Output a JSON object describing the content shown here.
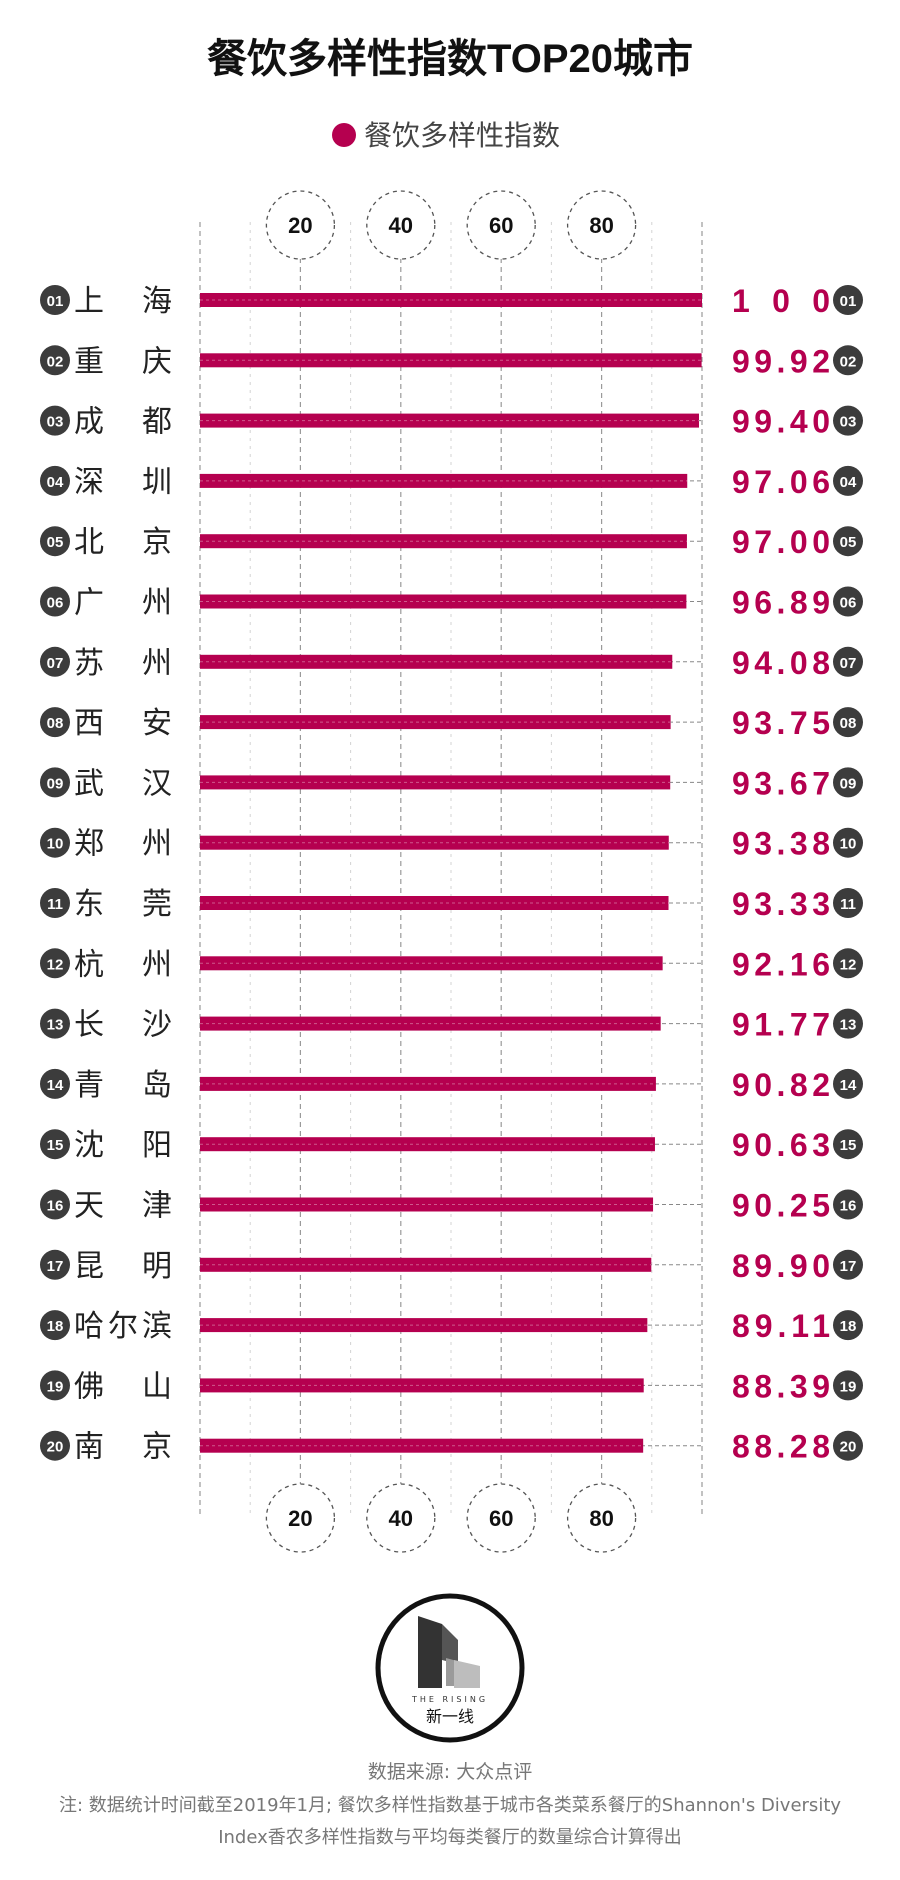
{
  "colors": {
    "bar": "#b5004f",
    "value_text": "#b5004f",
    "badge": "#3c3c3c",
    "grid": "#999999",
    "title": "#111111",
    "footer_text": "#777777"
  },
  "chart_data": {
    "type": "bar",
    "orientation": "horizontal",
    "title": "餐饮多样性指数TOP20城市",
    "legend": [
      "餐饮多样性指数"
    ],
    "legend_placement": "top-center",
    "x_range": [
      0,
      100
    ],
    "x_ticks": [
      20,
      40,
      60,
      80
    ],
    "grid": true,
    "categories": [
      "上海",
      "重庆",
      "成都",
      "深圳",
      "北京",
      "广州",
      "苏州",
      "西安",
      "武汉",
      "郑州",
      "东莞",
      "杭州",
      "长沙",
      "青岛",
      "沈阳",
      "天津",
      "昆明",
      "哈尔滨",
      "佛山",
      "南京"
    ],
    "ranks": [
      "01",
      "02",
      "03",
      "04",
      "05",
      "06",
      "07",
      "08",
      "09",
      "10",
      "11",
      "12",
      "13",
      "14",
      "15",
      "16",
      "17",
      "18",
      "19",
      "20"
    ],
    "series": [
      {
        "name": "餐饮多样性指数",
        "values": [
          100,
          99.92,
          99.4,
          97.06,
          97.0,
          96.89,
          94.08,
          93.75,
          93.67,
          93.38,
          93.33,
          92.16,
          91.77,
          90.82,
          90.63,
          90.25,
          89.9,
          89.11,
          88.39,
          88.28
        ],
        "labels": [
          "100",
          "99.92",
          "99.40",
          "97.06",
          "97.00",
          "96.89",
          "94.08",
          "93.75",
          "93.67",
          "93.38",
          "93.33",
          "92.16",
          "91.77",
          "90.82",
          "90.63",
          "90.25",
          "89.90",
          "89.11",
          "88.39",
          "88.28"
        ]
      }
    ]
  },
  "logo": {
    "icon": "building-blocks-icon",
    "small_text": "THE RISING",
    "name": "新一线"
  },
  "footer": {
    "source": "数据来源: 大众点评",
    "note_line1": "注: 数据统计时间截至2019年1月; 餐饮多样性指数基于城市各类菜系餐厅的Shannon's Diversity",
    "note_line2": "Index香农多样性指数与平均每类餐厅的数量综合计算得出"
  }
}
